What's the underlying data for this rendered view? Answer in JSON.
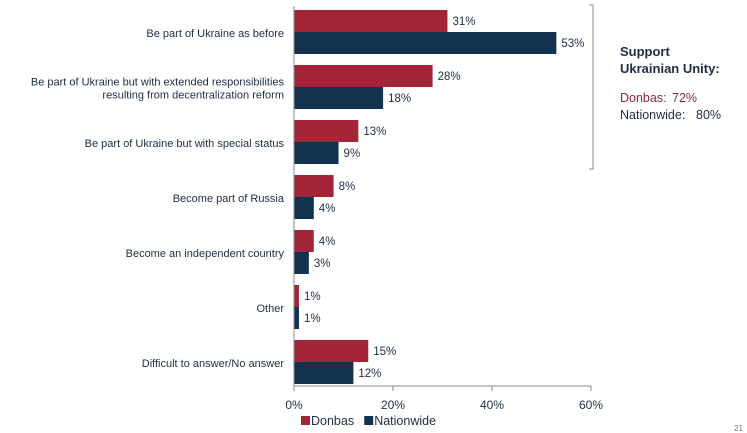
{
  "chart_data": {
    "type": "bar",
    "orientation": "horizontal",
    "categories": [
      "Be part of Ukraine as before",
      "Be part of Ukraine but with extended responsibilities resulting from decentralization reform",
      "Be part of Ukraine but with special status",
      "Become part of Russia",
      "Become an independent country",
      "Other",
      "Difficult to answer/No answer"
    ],
    "category_lines": [
      [
        "Be part of Ukraine as before"
      ],
      [
        "Be part of Ukraine but with extended responsibilities",
        "resulting from decentralization reform"
      ],
      [
        "Be part of Ukraine but with special status"
      ],
      [
        "Become part of Russia"
      ],
      [
        "Become an independent country"
      ],
      [
        "Other"
      ],
      [
        "Difficult to answer/No answer"
      ]
    ],
    "series": [
      {
        "name": "Donbas",
        "color": "#a32638",
        "values": [
          31,
          28,
          13,
          8,
          4,
          1,
          15
        ]
      },
      {
        "name": "Nationwide",
        "color": "#12334f",
        "values": [
          53,
          18,
          9,
          4,
          3,
          1,
          12
        ]
      }
    ],
    "value_suffix": "%",
    "xlim": [
      0,
      60
    ],
    "xticks": [
      0,
      20,
      40,
      60
    ],
    "xtick_labels": [
      "0%",
      "20%",
      "40%",
      "60%"
    ],
    "grid": false,
    "legend_position": "bottom",
    "bracket_groups": [
      0,
      1,
      2
    ]
  },
  "side_note": {
    "title_line1": "Support",
    "title_line2": "Ukrainian Unity:",
    "donbas_label": "Donbas:",
    "donbas_value": "72%",
    "nationwide_label": "Nationwide:",
    "nationwide_value": "80%",
    "donbas_color": "#8b2650",
    "nationwide_color": "#1f2d44"
  },
  "page_number": "21"
}
